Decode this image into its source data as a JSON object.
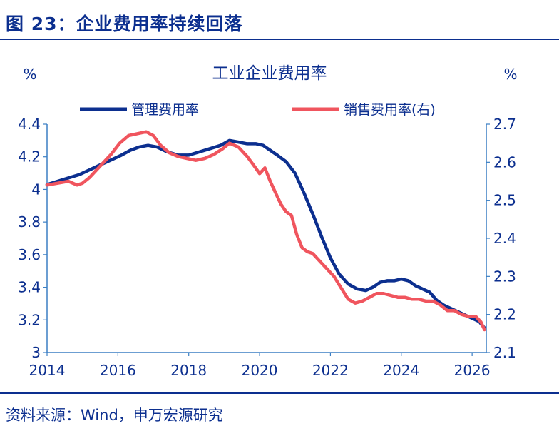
{
  "figure": {
    "title": "图 23：企业费用率持续回落",
    "source": "资料来源：Wind，申万宏源研究"
  },
  "colors": {
    "text": "#0c2f8f",
    "series_admin": "#0c2f8f",
    "series_sales": "#f0555e",
    "axis": "#3b7fc4"
  },
  "chart_data": {
    "type": "line",
    "title": "工业企业费用率",
    "y_unit_left": "%",
    "y_unit_right": "%",
    "legend_position": "top",
    "grid": false,
    "x_ticks": [
      "2014",
      "2016",
      "2018",
      "2020",
      "2022",
      "2024",
      "2026"
    ],
    "xlim": [
      2014,
      2026.4
    ],
    "ylim_left": [
      3,
      4.4
    ],
    "ylim_right": [
      2.1,
      2.7
    ],
    "y_ticks_left": [
      "3",
      "3.2",
      "3.4",
      "3.6",
      "3.8",
      "4",
      "4.2",
      "4.4"
    ],
    "y_ticks_right": [
      "2.1",
      "2.2",
      "2.3",
      "2.4",
      "2.5",
      "2.6",
      "2.7"
    ],
    "series": [
      {
        "name": "管理费用率",
        "axis": "left",
        "x": [
          2014.0,
          2014.3,
          2014.6,
          2014.9,
          2015.2,
          2015.5,
          2015.8,
          2016.1,
          2016.35,
          2016.6,
          2016.85,
          2017.1,
          2017.4,
          2017.7,
          2018.0,
          2018.3,
          2018.6,
          2018.9,
          2019.15,
          2019.4,
          2019.65,
          2019.9,
          2020.1,
          2020.3,
          2020.5,
          2020.75,
          2021.0,
          2021.25,
          2021.5,
          2021.75,
          2022.0,
          2022.25,
          2022.5,
          2022.75,
          2023.0,
          2023.2,
          2023.4,
          2023.6,
          2023.8,
          2024.0,
          2024.2,
          2024.4,
          2024.6,
          2024.8,
          2025.0,
          2025.2,
          2025.4,
          2025.6,
          2025.8,
          2026.0,
          2026.2,
          2026.35
        ],
        "values": [
          4.03,
          4.05,
          4.07,
          4.09,
          4.12,
          4.15,
          4.18,
          4.21,
          4.24,
          4.26,
          4.27,
          4.26,
          4.23,
          4.21,
          4.21,
          4.23,
          4.25,
          4.27,
          4.3,
          4.29,
          4.28,
          4.28,
          4.27,
          4.24,
          4.21,
          4.17,
          4.1,
          3.98,
          3.85,
          3.71,
          3.58,
          3.48,
          3.42,
          3.39,
          3.38,
          3.4,
          3.43,
          3.44,
          3.44,
          3.45,
          3.44,
          3.41,
          3.39,
          3.37,
          3.32,
          3.29,
          3.27,
          3.25,
          3.23,
          3.21,
          3.19,
          3.15
        ]
      },
      {
        "name": "销售费用率(右)",
        "axis": "right",
        "x": [
          2014.0,
          2014.3,
          2014.6,
          2014.85,
          2015.0,
          2015.2,
          2015.5,
          2015.8,
          2016.05,
          2016.3,
          2016.55,
          2016.8,
          2017.0,
          2017.2,
          2017.45,
          2017.7,
          2017.95,
          2018.2,
          2018.45,
          2018.7,
          2018.95,
          2019.15,
          2019.4,
          2019.65,
          2019.85,
          2020.0,
          2020.15,
          2020.3,
          2020.45,
          2020.6,
          2020.75,
          2020.9,
          2021.05,
          2021.2,
          2021.35,
          2021.5,
          2021.7,
          2021.9,
          2022.1,
          2022.3,
          2022.5,
          2022.7,
          2022.9,
          2023.1,
          2023.3,
          2023.5,
          2023.7,
          2023.9,
          2024.1,
          2024.3,
          2024.5,
          2024.7,
          2024.9,
          2025.1,
          2025.3,
          2025.5,
          2025.7,
          2025.9,
          2026.1,
          2026.25,
          2026.35
        ],
        "values": [
          2.54,
          2.545,
          2.55,
          2.54,
          2.545,
          2.56,
          2.59,
          2.62,
          2.65,
          2.67,
          2.675,
          2.68,
          2.67,
          2.645,
          2.625,
          2.615,
          2.61,
          2.605,
          2.61,
          2.62,
          2.635,
          2.65,
          2.64,
          2.615,
          2.59,
          2.57,
          2.585,
          2.55,
          2.52,
          2.49,
          2.47,
          2.46,
          2.41,
          2.375,
          2.365,
          2.36,
          2.34,
          2.32,
          2.3,
          2.27,
          2.24,
          2.23,
          2.235,
          2.245,
          2.255,
          2.255,
          2.25,
          2.245,
          2.245,
          2.24,
          2.24,
          2.235,
          2.235,
          2.225,
          2.21,
          2.21,
          2.2,
          2.195,
          2.195,
          2.18,
          2.16
        ]
      }
    ]
  }
}
